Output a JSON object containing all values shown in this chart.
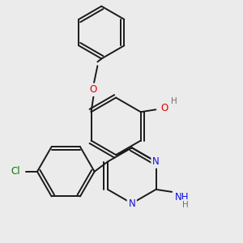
{
  "background_color": "#ebebeb",
  "bond_color": "#1a1a1a",
  "bond_width": 1.4,
  "atom_colors": {
    "N": "#1010e0",
    "O": "#e00000",
    "Cl": "#008000",
    "H": "#707070"
  },
  "font_size": 8.5,
  "fig_size": [
    3.0,
    3.0
  ],
  "dpi": 100
}
